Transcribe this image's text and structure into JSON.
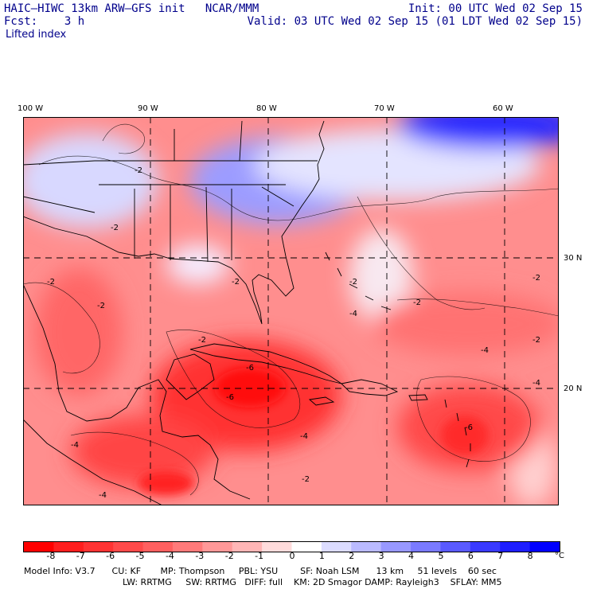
{
  "header": {
    "line1_left": "HAIC–HIWC 13km ARW–GFS init   NCAR/MMM",
    "line2_left": "Fcst:    3 h",
    "line1_right": "Init: 00 UTC Wed 02 Sep 15",
    "line2_right": "Valid: 03 UTC Wed 02 Sep 15 (01 LDT Wed 02 Sep 15)",
    "field_name": "Lifted index"
  },
  "map": {
    "longitude_labels": [
      "100 W",
      "90 W",
      "80 W",
      "70 W",
      "60 W"
    ],
    "latitude_labels": [
      "30 N",
      "20 N"
    ],
    "contour_labels": [
      "-2",
      "-2",
      "-2",
      "-2",
      "-2",
      "-2",
      "-2",
      "-2",
      "-2",
      "-2",
      "-4",
      "-4",
      "-4",
      "-4",
      "-4",
      "-6",
      "-6",
      "-6",
      "-4",
      "-2"
    ],
    "colors": {
      "water_frame": "#ffffff",
      "coast": "#000000",
      "grid_dashes": "#000000"
    }
  },
  "colorbar": {
    "tick_labels": [
      "-8",
      "-7",
      "-6",
      "-5",
      "-4",
      "-3",
      "-2",
      "-1",
      "0",
      "1",
      "2",
      "3",
      "4",
      "5",
      "6",
      "7",
      "8"
    ],
    "unit": "°C",
    "colors": [
      "#ff0000",
      "#ff1e1e",
      "#ff3333",
      "#ff4a4a",
      "#ff6060",
      "#ff7a7a",
      "#ff9898",
      "#ffb6b6",
      "#ffdcdc",
      "#ffffff",
      "#dcdcff",
      "#babaff",
      "#9898ff",
      "#7a7aff",
      "#5a5aff",
      "#3a3aff",
      "#1e1eff",
      "#0000ff"
    ]
  },
  "model_info": {
    "line1": "Model Info: V3.7      CU: KF       MP: Thompson     PBL: YSU        SF: Noah LSM      13 km     51 levels    60 sec",
    "line2": "LW: RRTMG     SW: RRTMG   DIFF: full    KM: 2D Smagor DAMP: Rayleigh3    SFLAY: MM5"
  }
}
